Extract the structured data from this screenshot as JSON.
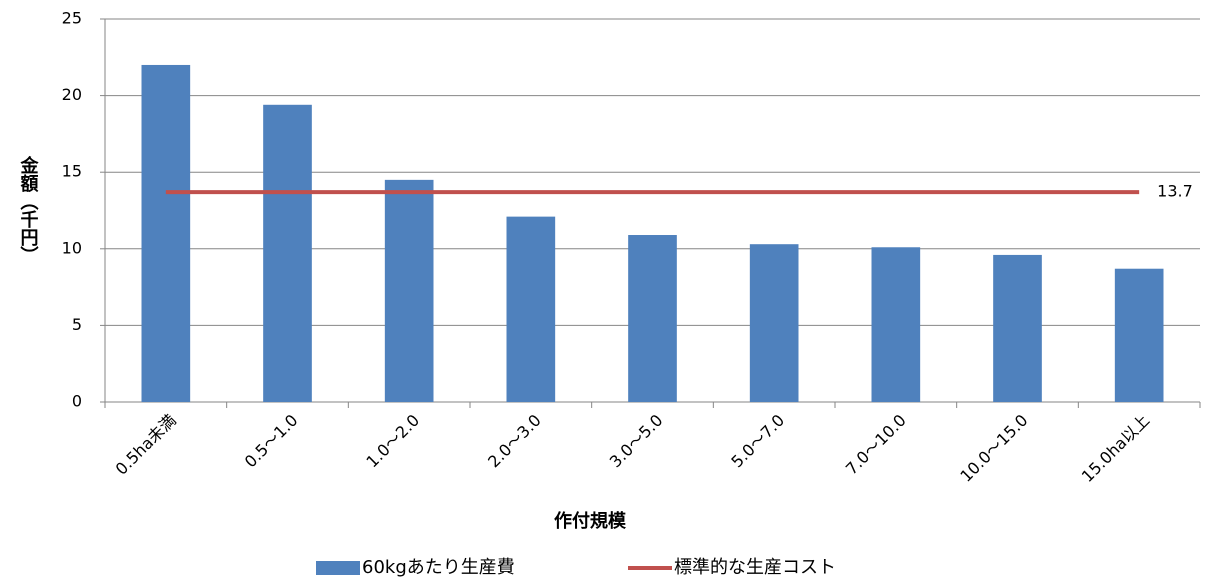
{
  "chart_data": {
    "type": "bar",
    "categories": [
      "0.5ha未満",
      "0.5〜1.0",
      "1.0〜2.0",
      "2.0〜3.0",
      "3.0〜5.0",
      "5.0〜7.0",
      "7.0〜10.0",
      "10.0〜15.0",
      "15.0ha以上"
    ],
    "series": [
      {
        "name": "60kgあたり生産費",
        "color": "#4f81bd",
        "values": [
          22.0,
          19.4,
          14.5,
          12.1,
          10.9,
          10.3,
          10.1,
          9.6,
          8.7
        ]
      },
      {
        "name": "標準的な生産コスト",
        "color": "#c0504d",
        "type": "hline",
        "value": 13.7
      }
    ],
    "xlabel": "作付規模",
    "ylabel": "金額（千円）",
    "ylim": [
      0,
      25
    ],
    "yticks": [
      0,
      5,
      10,
      15,
      20,
      25
    ],
    "grid": true,
    "legend": "bottom"
  }
}
